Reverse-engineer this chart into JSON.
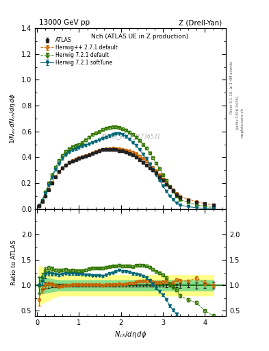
{
  "title_top": "13000 GeV pp",
  "title_right": "Z (Drell-Yan)",
  "plot_title": "Nch (ATLAS UE in Z production)",
  "ylabel_main": "1/N_{ev} dN_{ch}/d\\eta d\\phi",
  "ylabel_ratio": "Ratio to ATLAS",
  "xlabel": "N_{ch}/d\\eta d\\phi",
  "right_label1": "Rivet 3.1.10, ≥ 3.4M events",
  "right_label2": "[arXiv:1306.3436]",
  "right_label3": "mcplots.cern.ch",
  "watermark": "ATLAS_2019_I1736531",
  "ylim_main": [
    0.0,
    1.4
  ],
  "ylim_ratio": [
    0.4,
    2.5
  ],
  "xlim": [
    -0.05,
    4.5
  ],
  "atlas_x": [
    0.04,
    0.12,
    0.2,
    0.28,
    0.36,
    0.44,
    0.52,
    0.6,
    0.68,
    0.76,
    0.84,
    0.92,
    1.0,
    1.08,
    1.16,
    1.24,
    1.32,
    1.4,
    1.48,
    1.56,
    1.64,
    1.72,
    1.8,
    1.88,
    1.96,
    2.04,
    2.12,
    2.2,
    2.28,
    2.36,
    2.44,
    2.52,
    2.6,
    2.68,
    2.76,
    2.84,
    2.92,
    3.0,
    3.08,
    3.16,
    3.24,
    3.32,
    3.4,
    3.6,
    3.8,
    4.0,
    4.2
  ],
  "atlas_y": [
    0.025,
    0.06,
    0.1,
    0.15,
    0.2,
    0.25,
    0.29,
    0.32,
    0.34,
    0.36,
    0.37,
    0.38,
    0.39,
    0.4,
    0.41,
    0.42,
    0.43,
    0.44,
    0.45,
    0.46,
    0.46,
    0.46,
    0.46,
    0.46,
    0.45,
    0.45,
    0.44,
    0.43,
    0.42,
    0.4,
    0.38,
    0.36,
    0.34,
    0.32,
    0.3,
    0.28,
    0.25,
    0.22,
    0.19,
    0.17,
    0.14,
    0.11,
    0.09,
    0.07,
    0.05,
    0.04,
    0.03
  ],
  "atlas_yerr": [
    0.004,
    0.005,
    0.006,
    0.007,
    0.008,
    0.008,
    0.008,
    0.008,
    0.008,
    0.008,
    0.008,
    0.008,
    0.008,
    0.008,
    0.008,
    0.008,
    0.008,
    0.008,
    0.008,
    0.008,
    0.008,
    0.008,
    0.008,
    0.008,
    0.008,
    0.008,
    0.008,
    0.008,
    0.008,
    0.008,
    0.008,
    0.008,
    0.008,
    0.007,
    0.007,
    0.007,
    0.006,
    0.006,
    0.006,
    0.005,
    0.005,
    0.004,
    0.004,
    0.003,
    0.003,
    0.002,
    0.002
  ],
  "hpp_x": [
    0.04,
    0.12,
    0.2,
    0.28,
    0.36,
    0.44,
    0.52,
    0.6,
    0.68,
    0.76,
    0.84,
    0.92,
    1.0,
    1.08,
    1.16,
    1.24,
    1.32,
    1.4,
    1.48,
    1.56,
    1.64,
    1.72,
    1.8,
    1.88,
    1.96,
    2.04,
    2.12,
    2.2,
    2.28,
    2.36,
    2.44,
    2.52,
    2.6,
    2.68,
    2.76,
    2.84,
    2.92,
    3.0,
    3.08,
    3.16,
    3.24,
    3.32,
    3.4,
    3.6,
    3.8,
    4.0,
    4.2
  ],
  "hpp_y": [
    0.018,
    0.055,
    0.1,
    0.155,
    0.205,
    0.25,
    0.285,
    0.315,
    0.34,
    0.36,
    0.375,
    0.385,
    0.395,
    0.405,
    0.415,
    0.425,
    0.435,
    0.445,
    0.455,
    0.46,
    0.465,
    0.468,
    0.47,
    0.468,
    0.465,
    0.46,
    0.455,
    0.448,
    0.44,
    0.428,
    0.41,
    0.392,
    0.37,
    0.348,
    0.322,
    0.295,
    0.265,
    0.235,
    0.205,
    0.175,
    0.148,
    0.122,
    0.098,
    0.076,
    0.057,
    0.042,
    0.03
  ],
  "hpp_yerr": [
    0.003,
    0.004,
    0.005,
    0.005,
    0.006,
    0.006,
    0.006,
    0.006,
    0.006,
    0.006,
    0.006,
    0.006,
    0.006,
    0.006,
    0.006,
    0.006,
    0.006,
    0.006,
    0.006,
    0.006,
    0.006,
    0.006,
    0.006,
    0.006,
    0.006,
    0.006,
    0.006,
    0.006,
    0.006,
    0.006,
    0.006,
    0.006,
    0.006,
    0.005,
    0.005,
    0.005,
    0.005,
    0.004,
    0.004,
    0.004,
    0.003,
    0.003,
    0.003,
    0.002,
    0.002,
    0.002,
    0.001
  ],
  "h721d_x": [
    0.04,
    0.12,
    0.2,
    0.28,
    0.36,
    0.44,
    0.52,
    0.6,
    0.68,
    0.76,
    0.84,
    0.92,
    1.0,
    1.08,
    1.16,
    1.24,
    1.32,
    1.4,
    1.48,
    1.56,
    1.64,
    1.72,
    1.8,
    1.88,
    1.96,
    2.04,
    2.12,
    2.2,
    2.28,
    2.36,
    2.44,
    2.52,
    2.6,
    2.68,
    2.76,
    2.84,
    2.92,
    3.0,
    3.08,
    3.16,
    3.24,
    3.32,
    3.4,
    3.6,
    3.8,
    4.0,
    4.2
  ],
  "h721d_y": [
    0.025,
    0.07,
    0.13,
    0.2,
    0.265,
    0.325,
    0.375,
    0.415,
    0.445,
    0.465,
    0.48,
    0.49,
    0.5,
    0.515,
    0.535,
    0.555,
    0.575,
    0.59,
    0.6,
    0.615,
    0.625,
    0.63,
    0.635,
    0.635,
    0.63,
    0.62,
    0.61,
    0.595,
    0.575,
    0.555,
    0.53,
    0.5,
    0.47,
    0.435,
    0.395,
    0.355,
    0.31,
    0.265,
    0.22,
    0.175,
    0.135,
    0.1,
    0.072,
    0.05,
    0.033,
    0.02,
    0.012
  ],
  "h721d_yerr": [
    0.004,
    0.005,
    0.006,
    0.007,
    0.008,
    0.008,
    0.008,
    0.008,
    0.008,
    0.008,
    0.008,
    0.008,
    0.008,
    0.008,
    0.008,
    0.008,
    0.008,
    0.008,
    0.008,
    0.008,
    0.008,
    0.008,
    0.008,
    0.008,
    0.008,
    0.008,
    0.008,
    0.008,
    0.008,
    0.008,
    0.008,
    0.008,
    0.007,
    0.007,
    0.007,
    0.006,
    0.006,
    0.005,
    0.005,
    0.004,
    0.004,
    0.003,
    0.003,
    0.002,
    0.002,
    0.001,
    0.001
  ],
  "h721s_x": [
    0.04,
    0.12,
    0.2,
    0.28,
    0.36,
    0.44,
    0.52,
    0.6,
    0.68,
    0.76,
    0.84,
    0.92,
    1.0,
    1.08,
    1.16,
    1.24,
    1.32,
    1.4,
    1.48,
    1.56,
    1.64,
    1.72,
    1.8,
    1.88,
    1.96,
    2.04,
    2.12,
    2.2,
    2.28,
    2.36,
    2.44,
    2.52,
    2.6,
    2.68,
    2.76,
    2.84,
    2.92,
    3.0,
    3.08,
    3.16,
    3.24,
    3.32,
    3.4,
    3.6,
    3.8,
    4.0,
    4.2
  ],
  "h721s_y": [
    0.025,
    0.065,
    0.12,
    0.185,
    0.245,
    0.305,
    0.35,
    0.39,
    0.42,
    0.44,
    0.455,
    0.465,
    0.475,
    0.485,
    0.495,
    0.505,
    0.515,
    0.525,
    0.535,
    0.545,
    0.555,
    0.565,
    0.575,
    0.585,
    0.585,
    0.575,
    0.56,
    0.54,
    0.515,
    0.49,
    0.46,
    0.425,
    0.39,
    0.35,
    0.308,
    0.265,
    0.22,
    0.178,
    0.138,
    0.102,
    0.072,
    0.048,
    0.03,
    0.018,
    0.01,
    0.005,
    0.003
  ],
  "h721s_yerr": [
    0.004,
    0.005,
    0.006,
    0.006,
    0.007,
    0.007,
    0.007,
    0.007,
    0.007,
    0.007,
    0.007,
    0.007,
    0.007,
    0.007,
    0.007,
    0.007,
    0.007,
    0.007,
    0.007,
    0.007,
    0.007,
    0.007,
    0.007,
    0.007,
    0.007,
    0.007,
    0.007,
    0.007,
    0.007,
    0.007,
    0.007,
    0.007,
    0.006,
    0.006,
    0.006,
    0.005,
    0.005,
    0.004,
    0.004,
    0.004,
    0.003,
    0.003,
    0.002,
    0.002,
    0.001,
    0.001,
    0.001
  ],
  "color_atlas": "#222222",
  "color_hpp": "#cc6600",
  "color_h721d": "#337700",
  "color_h721s": "#006677",
  "label_atlas": "ATLAS",
  "label_hpp": "Herwig++ 2.7.1 default",
  "label_h721d": "Herwig 7.2.1 default",
  "label_h721s": "Herwig 7.2.1 softTune"
}
